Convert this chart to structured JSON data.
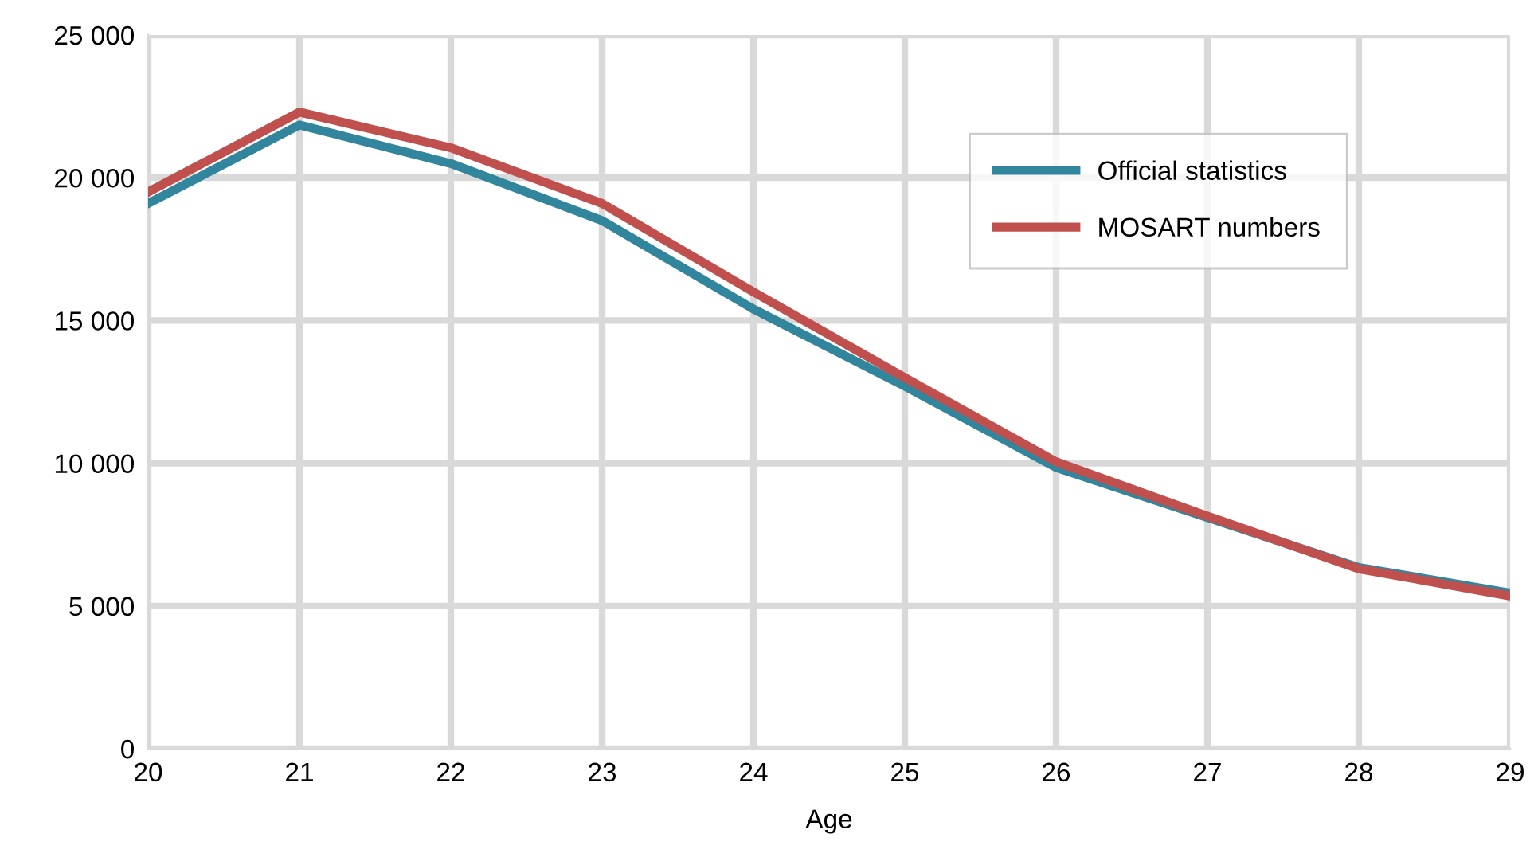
{
  "chart_data": {
    "type": "line",
    "xlabel": "Age",
    "x": [
      20,
      21,
      22,
      23,
      24,
      25,
      26,
      27,
      28,
      29
    ],
    "series": [
      {
        "name": "Official statistics",
        "color": "#31859c",
        "values": [
          19100,
          21850,
          20500,
          18500,
          15400,
          12700,
          9850,
          8100,
          6350,
          5450
        ]
      },
      {
        "name": "MOSART numbers",
        "color": "#c0504d",
        "values": [
          19500,
          22300,
          21050,
          19100,
          16000,
          13000,
          10050,
          8150,
          6300,
          5350
        ]
      }
    ],
    "xlim": [
      20,
      29
    ],
    "xticks": [
      20,
      21,
      22,
      23,
      24,
      25,
      26,
      27,
      28,
      29
    ],
    "ylim": [
      0,
      25000
    ],
    "yticks": [
      {
        "value": 0,
        "label": "0"
      },
      {
        "value": 5000,
        "label": "5 000"
      },
      {
        "value": 10000,
        "label": "10 000"
      },
      {
        "value": 15000,
        "label": "15 000"
      },
      {
        "value": 20000,
        "label": "20 000"
      },
      {
        "value": 25000,
        "label": "25 000"
      }
    ],
    "grid": true,
    "legend": "top right",
    "marker": "none",
    "line_style": "solid"
  }
}
